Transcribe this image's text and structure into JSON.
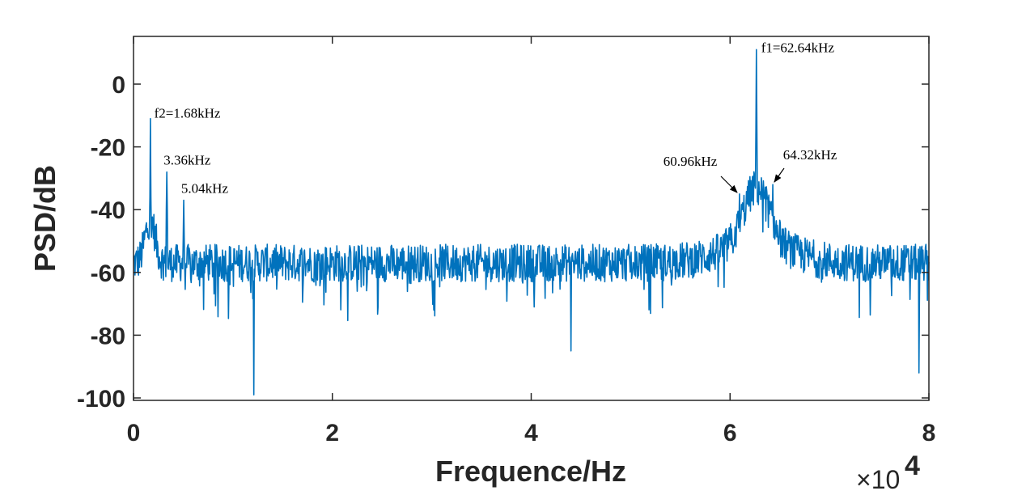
{
  "chart_data": {
    "type": "line",
    "title": "",
    "xlabel": "Frequence/Hz",
    "ylabel": "PSD/dB",
    "x_multiplier_base": "×10",
    "x_multiplier_exp": "4",
    "xlim": [
      0,
      80000
    ],
    "ylim": [
      -100,
      15
    ],
    "xticks": [
      0,
      20000,
      40000,
      60000,
      80000
    ],
    "xtick_labels": [
      "0",
      "2",
      "4",
      "6",
      "8"
    ],
    "yticks": [
      0,
      -20,
      -40,
      -60,
      -80,
      -100
    ],
    "ytick_labels": [
      "0",
      "-20",
      "-40",
      "-60",
      "-80",
      "-100"
    ],
    "grid": false,
    "legend": "none",
    "line_color": "#0072BD",
    "noise_floor_db": -57,
    "series": [
      {
        "name": "",
        "peaks": [
          {
            "x": 1680,
            "y": -11
          },
          {
            "x": 3360,
            "y": -28
          },
          {
            "x": 5040,
            "y": -37
          },
          {
            "x": 60960,
            "y": -35
          },
          {
            "x": 62640,
            "y": 11
          },
          {
            "x": 64320,
            "y": -32
          }
        ],
        "dips": [
          {
            "x": 12100,
            "y": -99
          },
          {
            "x": 44000,
            "y": -85
          },
          {
            "x": 79000,
            "y": -92
          }
        ]
      }
    ],
    "annotations": [
      {
        "text": "f2=1.68kHz",
        "x": 1680,
        "y": -11
      },
      {
        "text": "3.36kHz",
        "x": 3360,
        "y": -28
      },
      {
        "text": "5.04kHz",
        "x": 5040,
        "y": -37
      },
      {
        "text": "60.96kHz",
        "x": 60960,
        "y": -35,
        "arrow": true
      },
      {
        "text": "f1=62.64kHz",
        "x": 62640,
        "y": 11
      },
      {
        "text": "64.32kHz",
        "x": 64320,
        "y": -32,
        "arrow": true
      }
    ]
  }
}
